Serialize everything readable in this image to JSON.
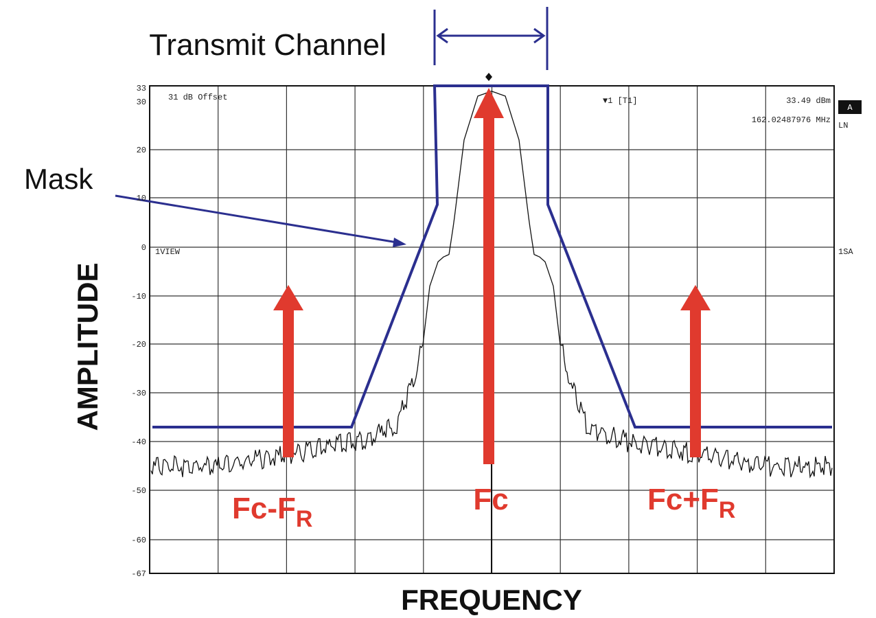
{
  "header": {
    "title": "Transmit Channel"
  },
  "annotations": {
    "mask": "Mask",
    "y_axis": "AMPLITUDE",
    "x_axis": "FREQUENCY",
    "lower": {
      "main": "Fc-F",
      "sub": "R"
    },
    "center": "Fc",
    "upper": {
      "main": "Fc+F",
      "sub": "R"
    }
  },
  "instrument": {
    "offset": "31 dB Offset",
    "marker": "▼1 [T1]",
    "level": "33.49 dBm",
    "freq": "162.02487976 MHz",
    "badge": "A",
    "ln": "LN",
    "view": "1VIEW",
    "sa": "1SA"
  },
  "y_tick_labels": [
    "33",
    "30",
    "20",
    "10",
    "0",
    "-10",
    "-20",
    "-30",
    "-40",
    "-50",
    "-60",
    "-67"
  ]
}
